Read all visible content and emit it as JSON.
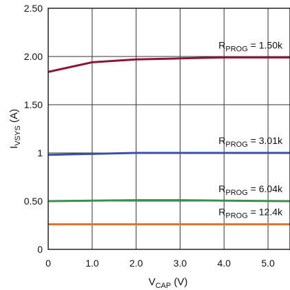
{
  "chart_data": {
    "type": "line",
    "xlabel": {
      "main": "V",
      "sub": "CAP",
      "suffix": " (V)"
    },
    "ylabel": {
      "main": "I",
      "sub": "VSYS",
      "suffix": " (A)"
    },
    "xlim": [
      0,
      5.5
    ],
    "ylim": [
      0,
      2.5
    ],
    "xticks": [
      {
        "value": 0,
        "label": "0"
      },
      {
        "value": 1,
        "label": "1.0"
      },
      {
        "value": 2,
        "label": "2.0"
      },
      {
        "value": 3,
        "label": "3.0"
      },
      {
        "value": 4,
        "label": "4.0"
      },
      {
        "value": 5,
        "label": "5.0"
      }
    ],
    "yticks": [
      {
        "value": 0,
        "label": "0"
      },
      {
        "value": 0.5,
        "label": "0.50"
      },
      {
        "value": 1,
        "label": "1"
      },
      {
        "value": 1.5,
        "label": "1.50"
      },
      {
        "value": 2,
        "label": "2.00"
      },
      {
        "value": 2.5,
        "label": "2.50"
      }
    ],
    "grid": true,
    "series": [
      {
        "name": "R_PROG = 1.50k",
        "label": {
          "main": "R",
          "sub": "PROG",
          "suffix": " = 1.50k"
        },
        "color": "#8c1538",
        "x": [
          0,
          1.0,
          2.0,
          3.0,
          4.0,
          4.5,
          5.5
        ],
        "y": [
          1.84,
          1.94,
          1.97,
          1.98,
          1.99,
          1.99,
          1.99
        ]
      },
      {
        "name": "R_PROG = 3.01k",
        "label": {
          "main": "R",
          "sub": "PROG",
          "suffix": " = 3.01k"
        },
        "color": "#3b4fa6",
        "x": [
          0,
          1.0,
          2.0,
          3.0,
          4.0,
          5.5
        ],
        "y": [
          0.98,
          0.99,
          1.0,
          1.0,
          1.0,
          1.0
        ]
      },
      {
        "name": "R_PROG = 6.04k",
        "label": {
          "main": "R",
          "sub": "PROG",
          "suffix": " = 6.04k"
        },
        "color": "#3a8f4e",
        "x": [
          0,
          1.0,
          2.0,
          3.0,
          4.0,
          5.5
        ],
        "y": [
          0.5,
          0.505,
          0.51,
          0.51,
          0.505,
          0.5
        ]
      },
      {
        "name": "R_PROG = 12.4k",
        "label": {
          "main": "R",
          "sub": "PROG",
          "suffix": " = 12.4k"
        },
        "color": "#d9752f",
        "x": [
          0,
          5.5
        ],
        "y": [
          0.26,
          0.26
        ]
      }
    ]
  }
}
